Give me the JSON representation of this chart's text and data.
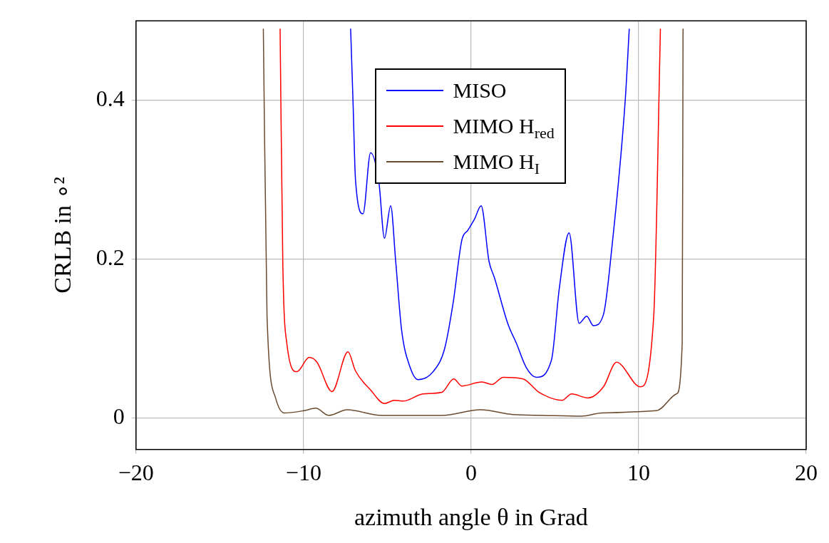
{
  "chart_data": {
    "type": "line",
    "xlabel": "azimuth angle θ in Grad",
    "ylabel": "CRLB in ∘²",
    "xlim": [
      -20,
      20
    ],
    "xticks": [
      -20,
      -10,
      0,
      10,
      20
    ],
    "ylim": [
      -0.04,
      0.5
    ],
    "yticks": [
      0,
      0.2,
      0.4
    ],
    "grid": true,
    "legend": "top",
    "marker": "none",
    "line_style": "solid",
    "series": [
      {
        "name": "MISO",
        "color": "#0000ff",
        "x": [
          -7.19,
          -7.05,
          -6.9,
          -6.45,
          -6.0,
          -5.5,
          -5.17,
          -4.8,
          -4.5,
          -4.15,
          -3.63,
          -3.16,
          -2.27,
          -1.58,
          -1.07,
          -0.55,
          -0.2,
          0.2,
          0.6,
          1.07,
          1.4,
          2.2,
          2.7,
          3.3,
          3.9,
          4.8,
          5.26,
          5.85,
          6.45,
          6.9,
          7.3,
          7.9,
          8.4,
          9.2,
          9.44
        ],
        "values": [
          0.49,
          0.4,
          0.3,
          0.257,
          0.334,
          0.296,
          0.226,
          0.267,
          0.197,
          0.111,
          0.063,
          0.048,
          0.058,
          0.087,
          0.145,
          0.224,
          0.236,
          0.25,
          0.267,
          0.197,
          0.176,
          0.118,
          0.094,
          0.063,
          0.051,
          0.073,
          0.162,
          0.233,
          0.119,
          0.128,
          0.116,
          0.13,
          0.214,
          0.4,
          0.49
        ]
      },
      {
        "name": "MIMO H$_{red}$",
        "color": "#ff0000",
        "x": [
          -11.4,
          -11.24,
          -11.0,
          -10.4,
          -9.66,
          -9.2,
          -8.3,
          -7.35,
          -6.9,
          -6.0,
          -5.17,
          -4.57,
          -4.06,
          -2.86,
          -1.75,
          -1.03,
          -0.56,
          0.64,
          1.24,
          1.92,
          3.1,
          4.06,
          5.43,
          6.0,
          6.97,
          7.9,
          8.68,
          10.1,
          10.9,
          11.3
        ],
        "values": [
          0.49,
          0.197,
          0.094,
          0.058,
          0.076,
          0.07,
          0.033,
          0.083,
          0.059,
          0.035,
          0.018,
          0.022,
          0.021,
          0.03,
          0.032,
          0.049,
          0.04,
          0.045,
          0.042,
          0.051,
          0.049,
          0.032,
          0.022,
          0.03,
          0.025,
          0.039,
          0.07,
          0.039,
          0.128,
          0.49
        ]
      },
      {
        "name": "MIMO H$_{I}$",
        "color": "#6b4a2e",
        "x": [
          -12.4,
          -12.18,
          -11.67,
          -11.15,
          -9.96,
          -9.27,
          -8.5,
          -7.4,
          -5.34,
          -1.75,
          0.56,
          2.5,
          4.23,
          6.6,
          7.8,
          11.07,
          12.26,
          12.6,
          12.65
        ],
        "values": [
          0.49,
          0.128,
          0.025,
          0.006,
          0.009,
          0.012,
          0.003,
          0.01,
          0.003,
          0.003,
          0.01,
          0.004,
          0.003,
          0.002,
          0.006,
          0.009,
          0.03,
          0.094,
          0.49
        ]
      }
    ]
  }
}
